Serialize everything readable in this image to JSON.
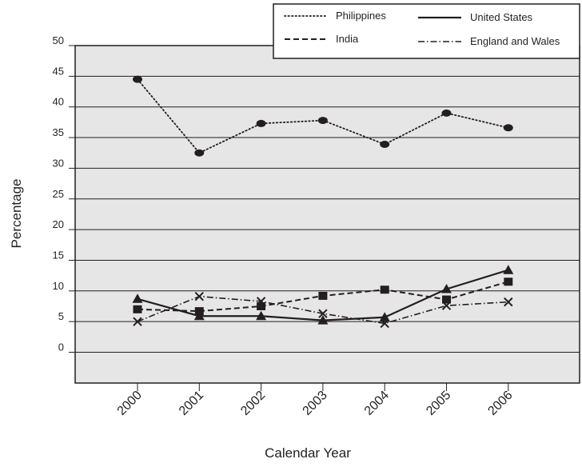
{
  "chart_data": {
    "type": "line",
    "xlabel": "Calendar Year",
    "ylabel": "Percentage",
    "categories": [
      "2000",
      "2001",
      "2002",
      "2003",
      "2004",
      "2005",
      "2006"
    ],
    "ylim": [
      -5,
      50
    ],
    "yticks": [
      50,
      45,
      40,
      35,
      30,
      25,
      20,
      15,
      10,
      5,
      0
    ],
    "grid": true,
    "plot_background": "#e6e6e7",
    "legend_position": "top-right",
    "series": [
      {
        "name": "Philippines",
        "line_style": "dotted",
        "marker": "circle",
        "values": [
          44.5,
          32.5,
          37.3,
          37.8,
          33.9,
          39.0,
          36.6
        ]
      },
      {
        "name": "India",
        "line_style": "dashed",
        "marker": "square",
        "values": [
          7.0,
          6.7,
          7.5,
          9.2,
          10.2,
          8.6,
          11.5
        ]
      },
      {
        "name": "United States",
        "line_style": "solid",
        "marker": "triangle",
        "values": [
          8.7,
          5.9,
          5.9,
          5.2,
          5.7,
          10.3,
          13.4
        ]
      },
      {
        "name": "England and Wales",
        "line_style": "dash-dot",
        "marker": "x",
        "values": [
          5.0,
          9.1,
          8.3,
          6.3,
          4.7,
          7.6,
          8.2
        ]
      }
    ]
  }
}
